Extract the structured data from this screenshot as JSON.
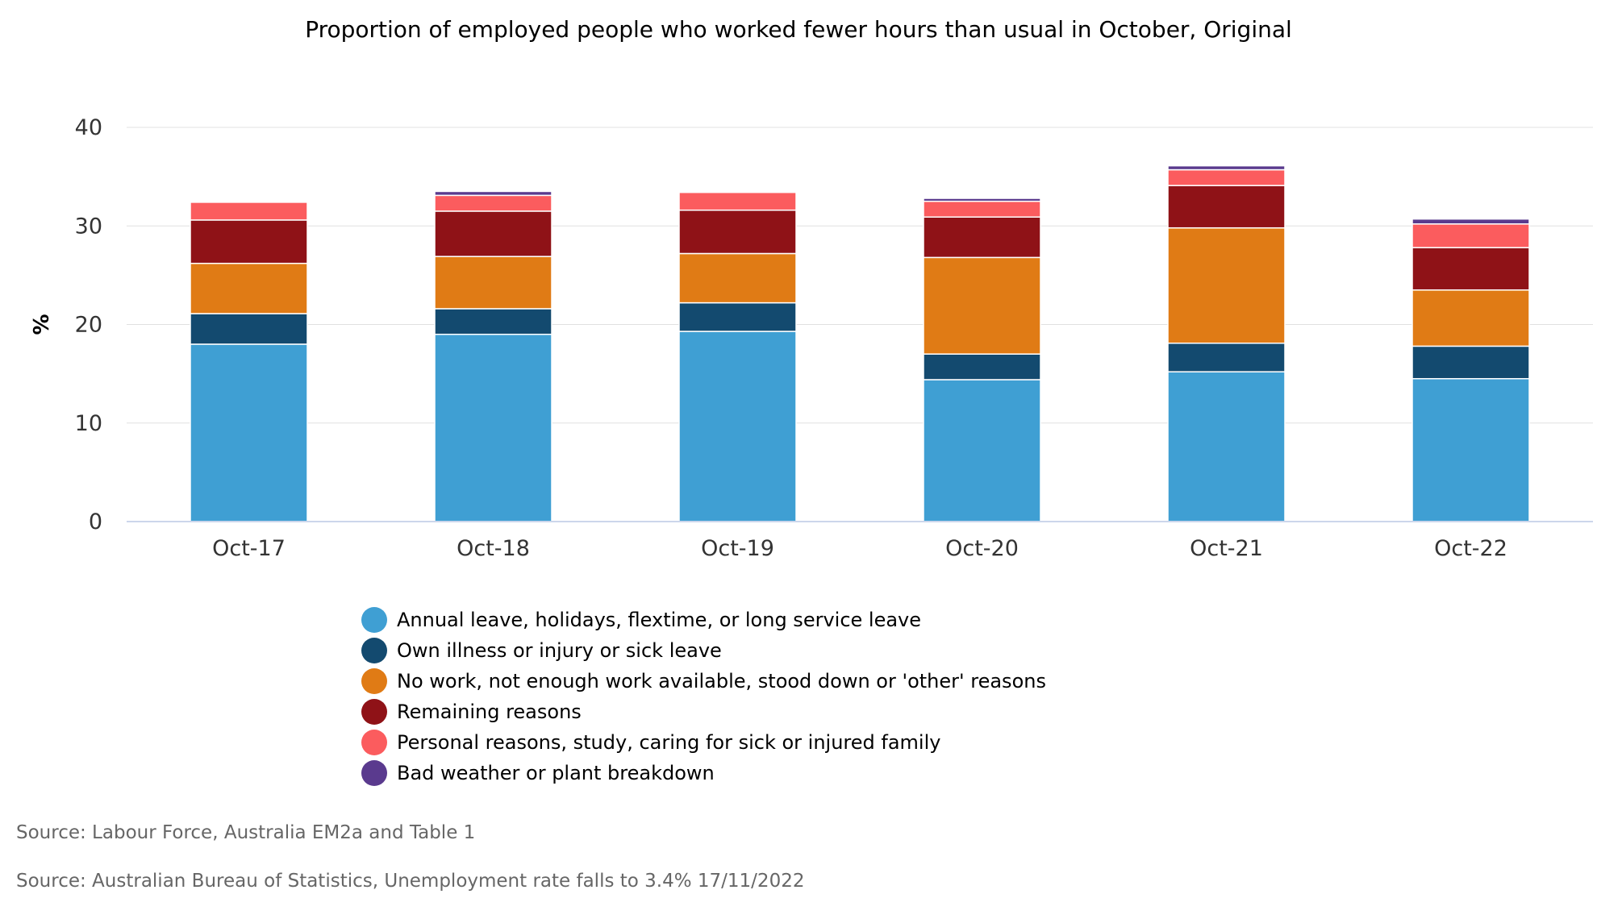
{
  "chart_data": {
    "type": "bar",
    "stacked": true,
    "title": "Proportion of employed people who worked fewer hours than usual in October, Original",
    "ylabel": "%",
    "xlabel": "",
    "ylim": [
      0,
      40
    ],
    "yticks": [
      0,
      10,
      20,
      30,
      40
    ],
    "grid": true,
    "legend_position": "bottom",
    "categories": [
      "Oct-17",
      "Oct-18",
      "Oct-19",
      "Oct-20",
      "Oct-21",
      "Oct-22"
    ],
    "series": [
      {
        "name": "Annual leave, holidays, flextime, or long service leave",
        "color": "#3f9fd3",
        "values": [
          18.0,
          19.0,
          19.3,
          14.4,
          15.2,
          14.5
        ]
      },
      {
        "name": "Own illness or injury or sick leave",
        "color": "#134a6f",
        "values": [
          3.1,
          2.6,
          2.9,
          2.6,
          2.9,
          3.3
        ]
      },
      {
        "name": "No work, not enough work available, stood down or 'other' reasons",
        "color": "#e07b15",
        "values": [
          5.1,
          5.3,
          5.0,
          9.8,
          11.7,
          5.7
        ]
      },
      {
        "name": "Remaining reasons",
        "color": "#8f1217",
        "values": [
          4.4,
          4.6,
          4.4,
          4.1,
          4.3,
          4.3
        ]
      },
      {
        "name": "Personal reasons, study, caring for sick or injured family",
        "color": "#fb5c5e",
        "values": [
          1.8,
          1.6,
          1.8,
          1.6,
          1.6,
          2.4
        ]
      },
      {
        "name": "Bad weather or plant breakdown",
        "color": "#5a3a8e",
        "values": [
          0.0,
          0.4,
          0.0,
          0.3,
          0.4,
          0.5
        ]
      }
    ]
  },
  "sources": [
    "Source: Labour Force, Australia EM2a and Table 1",
    "Source: Australian Bureau of Statistics, Unemployment rate falls to 3.4% 17/11/2022"
  ]
}
